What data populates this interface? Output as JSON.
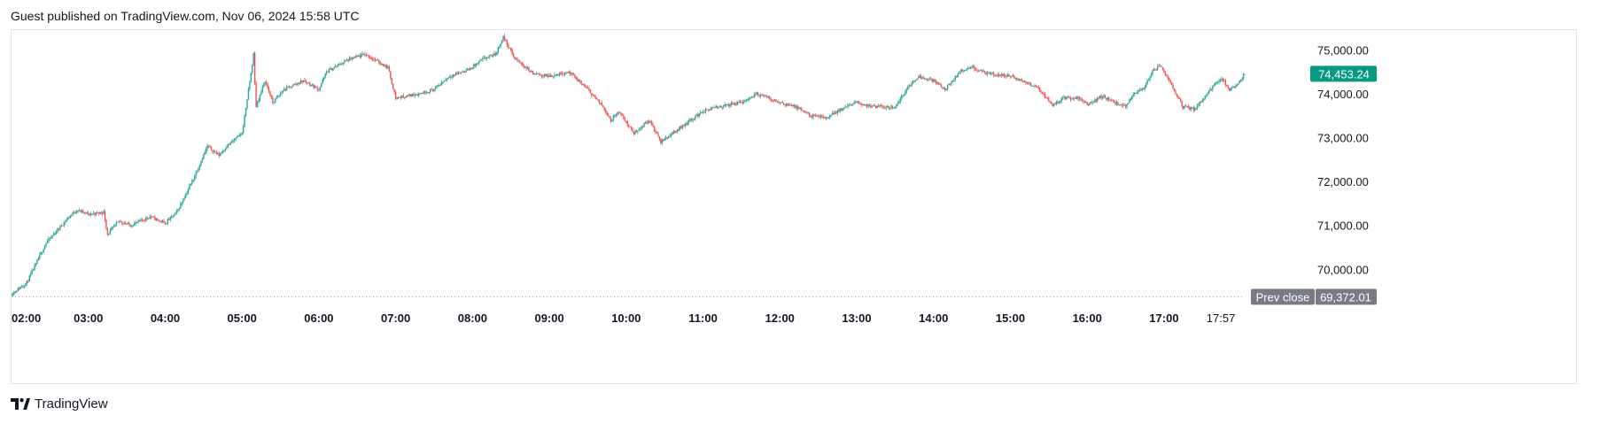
{
  "header": {
    "published": "Guest published on TradingView.com, Nov 06, 2024 15:58 UTC"
  },
  "footer": {
    "brand": "TradingView"
  },
  "colors": {
    "up": "#26a69a",
    "down": "#ef5350",
    "last_price_bg": "#089981",
    "prev_close_bg": "#787b86",
    "grid_border": "#e0e3eb",
    "axis_text": "#131722"
  },
  "chart_data": {
    "type": "candlestick",
    "interval_minutes": 1,
    "x_ticks": [
      "02:00",
      "03:00",
      "04:00",
      "05:00",
      "06:00",
      "07:00",
      "08:00",
      "09:00",
      "10:00",
      "11:00",
      "12:00",
      "13:00",
      "14:00",
      "15:00",
      "16:00",
      "17:00",
      "17:57"
    ],
    "y_ticks": [
      {
        "value": 70000,
        "label": "70,000.00"
      },
      {
        "value": 71000,
        "label": "71,000.00"
      },
      {
        "value": 72000,
        "label": "72,000.00"
      },
      {
        "value": 73000,
        "label": "73,000.00"
      },
      {
        "value": 74000,
        "label": "74,000.00"
      },
      {
        "value": 75000,
        "label": "75,000.00"
      }
    ],
    "ylim": [
      69300,
      75450
    ],
    "xlim_hours": [
      2.0,
      18.05
    ],
    "last_price": {
      "value": 74453.24,
      "label": "74,453.24"
    },
    "prev_close": {
      "value": 69372.01,
      "label": "69,372.01",
      "tag": "Prev close"
    },
    "keypoints": [
      [
        1.97,
        69400
      ],
      [
        2.2,
        69700
      ],
      [
        2.45,
        70600
      ],
      [
        2.75,
        71200
      ],
      [
        2.85,
        71350
      ],
      [
        3.0,
        71250
      ],
      [
        3.2,
        71300
      ],
      [
        3.25,
        70800
      ],
      [
        3.4,
        71100
      ],
      [
        3.55,
        71000
      ],
      [
        3.8,
        71200
      ],
      [
        4.0,
        71050
      ],
      [
        4.15,
        71300
      ],
      [
        4.35,
        72000
      ],
      [
        4.55,
        72800
      ],
      [
        4.7,
        72600
      ],
      [
        4.8,
        72800
      ],
      [
        5.0,
        73100
      ],
      [
        5.12,
        74500
      ],
      [
        5.15,
        74900
      ],
      [
        5.18,
        73700
      ],
      [
        5.3,
        74300
      ],
      [
        5.4,
        73800
      ],
      [
        5.55,
        74100
      ],
      [
        5.8,
        74300
      ],
      [
        6.0,
        74100
      ],
      [
        6.1,
        74500
      ],
      [
        6.35,
        74750
      ],
      [
        6.6,
        74900
      ],
      [
        6.9,
        74600
      ],
      [
        7.0,
        73900
      ],
      [
        7.3,
        74000
      ],
      [
        7.5,
        74100
      ],
      [
        7.7,
        74400
      ],
      [
        7.95,
        74550
      ],
      [
        8.15,
        74800
      ],
      [
        8.3,
        74900
      ],
      [
        8.4,
        75300
      ],
      [
        8.55,
        74800
      ],
      [
        8.8,
        74450
      ],
      [
        9.0,
        74400
      ],
      [
        9.25,
        74500
      ],
      [
        9.5,
        74100
      ],
      [
        9.7,
        73700
      ],
      [
        9.8,
        73400
      ],
      [
        9.9,
        73600
      ],
      [
        10.1,
        73100
      ],
      [
        10.3,
        73400
      ],
      [
        10.45,
        72900
      ],
      [
        10.6,
        73100
      ],
      [
        10.8,
        73350
      ],
      [
        11.0,
        73600
      ],
      [
        11.2,
        73700
      ],
      [
        11.5,
        73800
      ],
      [
        11.7,
        74000
      ],
      [
        11.85,
        73900
      ],
      [
        12.0,
        73800
      ],
      [
        12.2,
        73700
      ],
      [
        12.4,
        73500
      ],
      [
        12.6,
        73450
      ],
      [
        12.8,
        73650
      ],
      [
        13.0,
        73800
      ],
      [
        13.2,
        73700
      ],
      [
        13.5,
        73700
      ],
      [
        13.65,
        74100
      ],
      [
        13.8,
        74400
      ],
      [
        14.0,
        74300
      ],
      [
        14.15,
        74100
      ],
      [
        14.35,
        74500
      ],
      [
        14.5,
        74600
      ],
      [
        14.7,
        74450
      ],
      [
        15.0,
        74400
      ],
      [
        15.2,
        74250
      ],
      [
        15.35,
        74150
      ],
      [
        15.55,
        73750
      ],
      [
        15.7,
        73900
      ],
      [
        15.9,
        73900
      ],
      [
        16.0,
        73750
      ],
      [
        16.2,
        73950
      ],
      [
        16.35,
        73800
      ],
      [
        16.5,
        73700
      ],
      [
        16.6,
        74000
      ],
      [
        16.75,
        74150
      ],
      [
        16.85,
        74500
      ],
      [
        16.95,
        74650
      ],
      [
        17.1,
        74200
      ],
      [
        17.25,
        73700
      ],
      [
        17.4,
        73650
      ],
      [
        17.6,
        74100
      ],
      [
        17.75,
        74350
      ],
      [
        17.85,
        74100
      ],
      [
        17.95,
        74200
      ],
      [
        18.05,
        74453.24
      ]
    ]
  }
}
